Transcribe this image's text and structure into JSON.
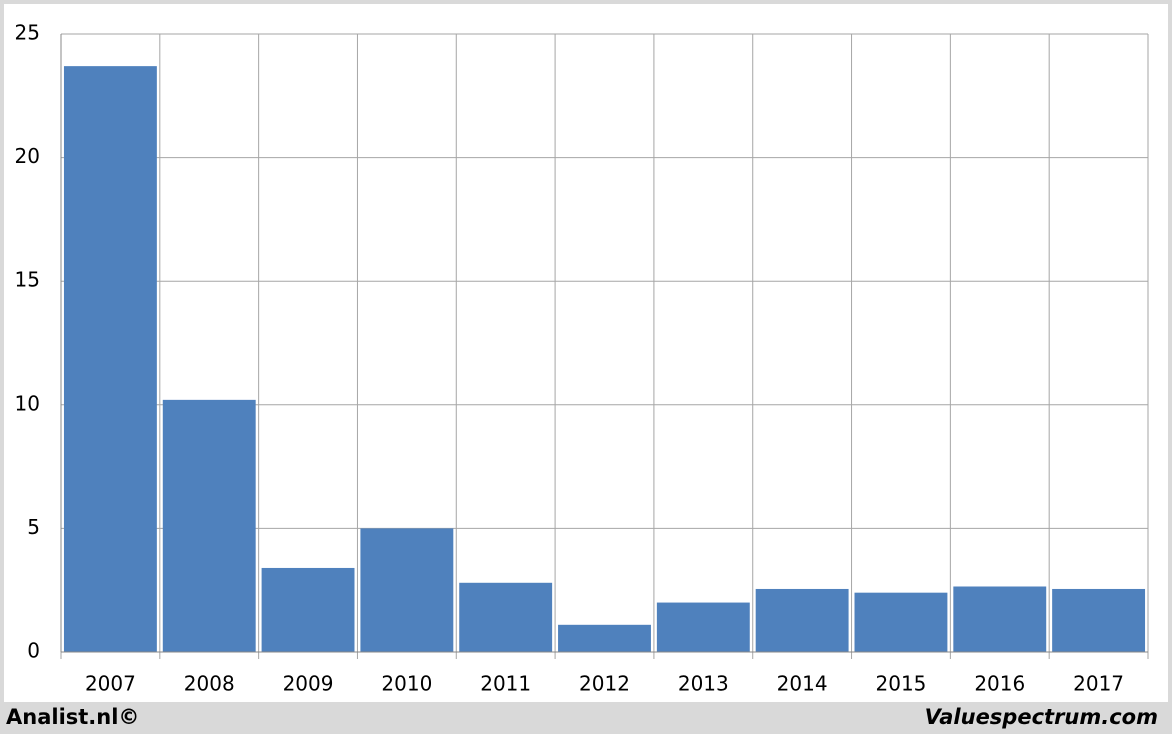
{
  "chart_data": {
    "type": "bar",
    "categories": [
      "2007",
      "2008",
      "2009",
      "2010",
      "2011",
      "2012",
      "2013",
      "2014",
      "2015",
      "2016",
      "2017"
    ],
    "values": [
      23.7,
      10.2,
      3.4,
      5.0,
      2.8,
      1.1,
      2.0,
      2.55,
      2.4,
      2.65,
      2.55
    ],
    "color": "#4f81bd",
    "ylim": [
      0,
      25
    ],
    "yticks": [
      0,
      5,
      10,
      15,
      20,
      25
    ],
    "grid": true
  },
  "footer": {
    "left": "Analist.nl©",
    "right": "Valuespectrum.com"
  }
}
